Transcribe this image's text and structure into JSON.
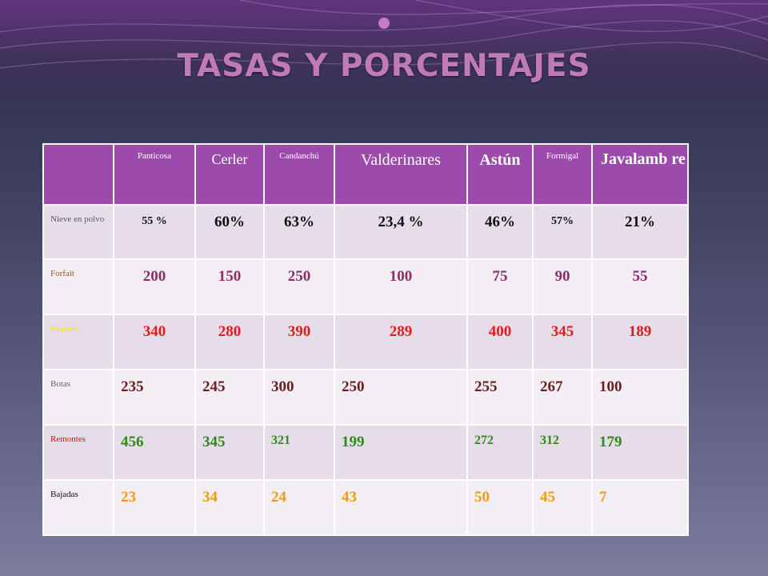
{
  "slide": {
    "bullet": ".",
    "title": "TASAS Y PORCENTAJES"
  },
  "table": {
    "columns": [
      "",
      "Panticosa",
      "Cerler",
      "Candanchú",
      "Valderinares",
      "Astún",
      "Formigal",
      "Javalamb re"
    ],
    "rows": [
      {
        "label": "Nieve en polvo",
        "label_color": "#5b5670",
        "value_color": "#111111",
        "values": [
          "55 %",
          "60%",
          "63%",
          "23,4 %",
          "46%",
          "57%",
          "21%"
        ]
      },
      {
        "label": "Forfait",
        "label_color": "#8a5a2b",
        "value_color": "#8b2f6b",
        "values": [
          "200",
          "150",
          "250",
          "100",
          "75",
          "90",
          "55"
        ]
      },
      {
        "label": "Esquíes",
        "label_color": "#f2e600",
        "value_color": "#e01b1b",
        "values": [
          "340",
          "280",
          "390",
          "289",
          "400",
          "345",
          "189"
        ]
      },
      {
        "label": "Botas",
        "label_color": "#6b5c60",
        "value_color": "#6b1e1e",
        "values": [
          "235",
          "245",
          "300",
          "250",
          "255",
          "267",
          "100"
        ]
      },
      {
        "label": "Remontes",
        "label_color": "#d01010",
        "value_color": "#2f8a1a",
        "values": [
          "456",
          "345",
          "321",
          "199",
          "272",
          "312",
          "179"
        ]
      },
      {
        "label": "Bajadas",
        "label_color": "#111111",
        "value_color": "#f29a10",
        "values": [
          "23",
          "34",
          "24",
          "43",
          "50",
          "45",
          "7"
        ]
      }
    ]
  }
}
